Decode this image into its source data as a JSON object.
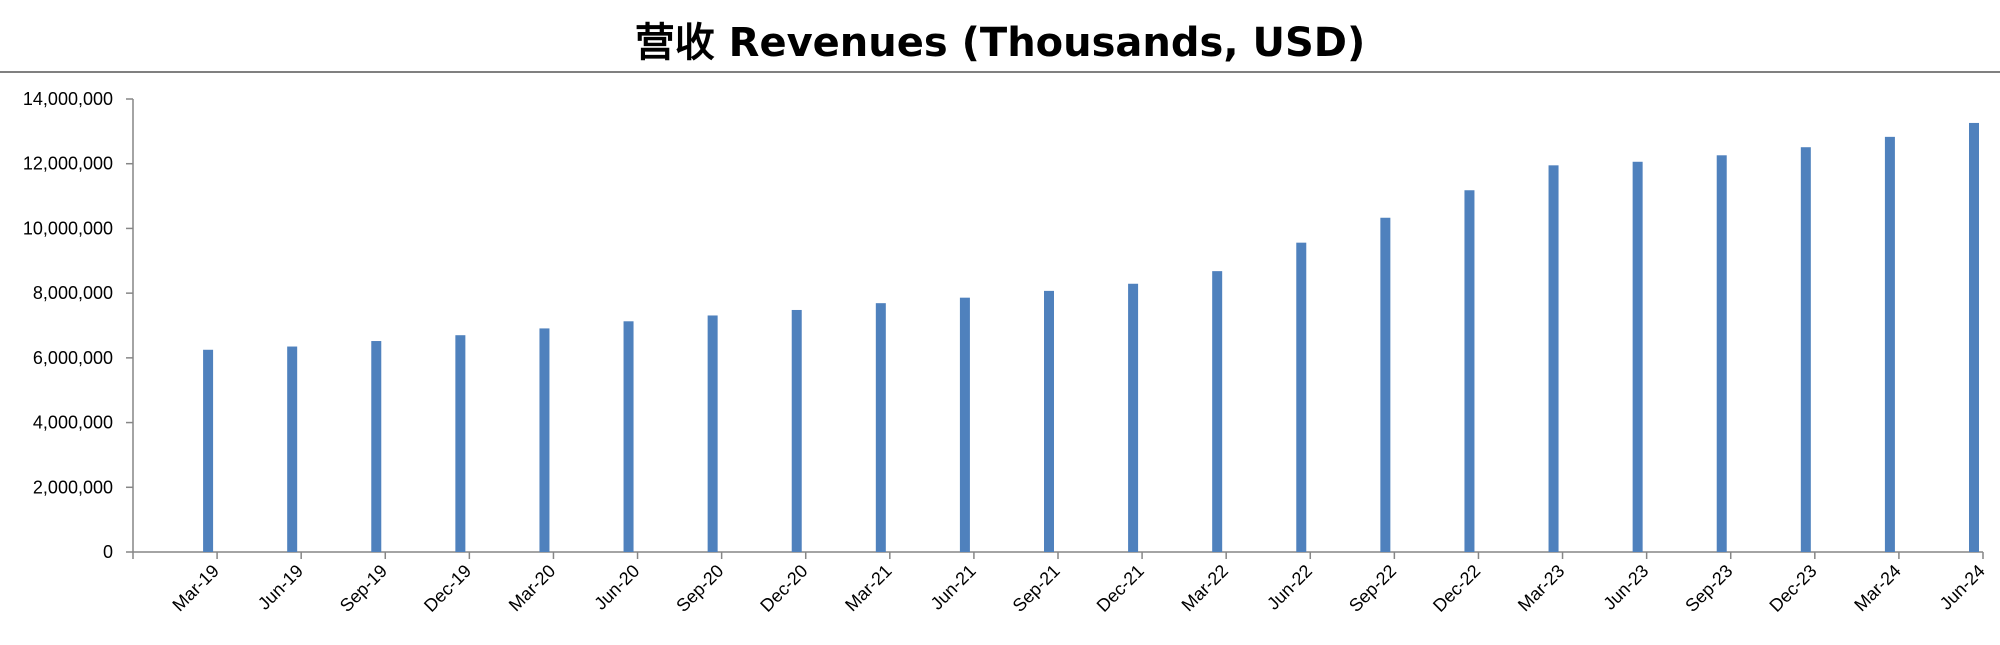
{
  "title": "营收 Revenues (Thousands, USD)",
  "chart_data": {
    "type": "bar",
    "title": "营收 Revenues (Thousands, USD)",
    "xlabel": "",
    "ylabel": "",
    "ylim": [
      0,
      14000000
    ],
    "yticks": [
      "0",
      "2,000,000",
      "4,000,000",
      "6,000,000",
      "8,000,000",
      "10,000,000",
      "12,000,000",
      "14,000,000"
    ],
    "ytick_values": [
      0,
      2000000,
      4000000,
      6000000,
      8000000,
      10000000,
      12000000,
      14000000
    ],
    "grid": false,
    "legend": "none",
    "bar_color": "#4F81BD",
    "categories": [
      "Mar-19",
      "Jun-19",
      "Sep-19",
      "Dec-19",
      "Mar-20",
      "Jun-20",
      "Sep-20",
      "Dec-20",
      "Mar-21",
      "Jun-21",
      "Sep-21",
      "Dec-21",
      "Mar-22",
      "Jun-22",
      "Sep-22",
      "Dec-22",
      "Mar-23",
      "Jun-23",
      "Sep-23",
      "Dec-23",
      "Mar-24",
      "Jun-24"
    ],
    "values": [
      6250000,
      6350000,
      6520000,
      6700000,
      6910000,
      7130000,
      7310000,
      7480000,
      7690000,
      7860000,
      8070000,
      8290000,
      8680000,
      9560000,
      10330000,
      11180000,
      11950000,
      12060000,
      12260000,
      12510000,
      12830000,
      13260000
    ]
  }
}
